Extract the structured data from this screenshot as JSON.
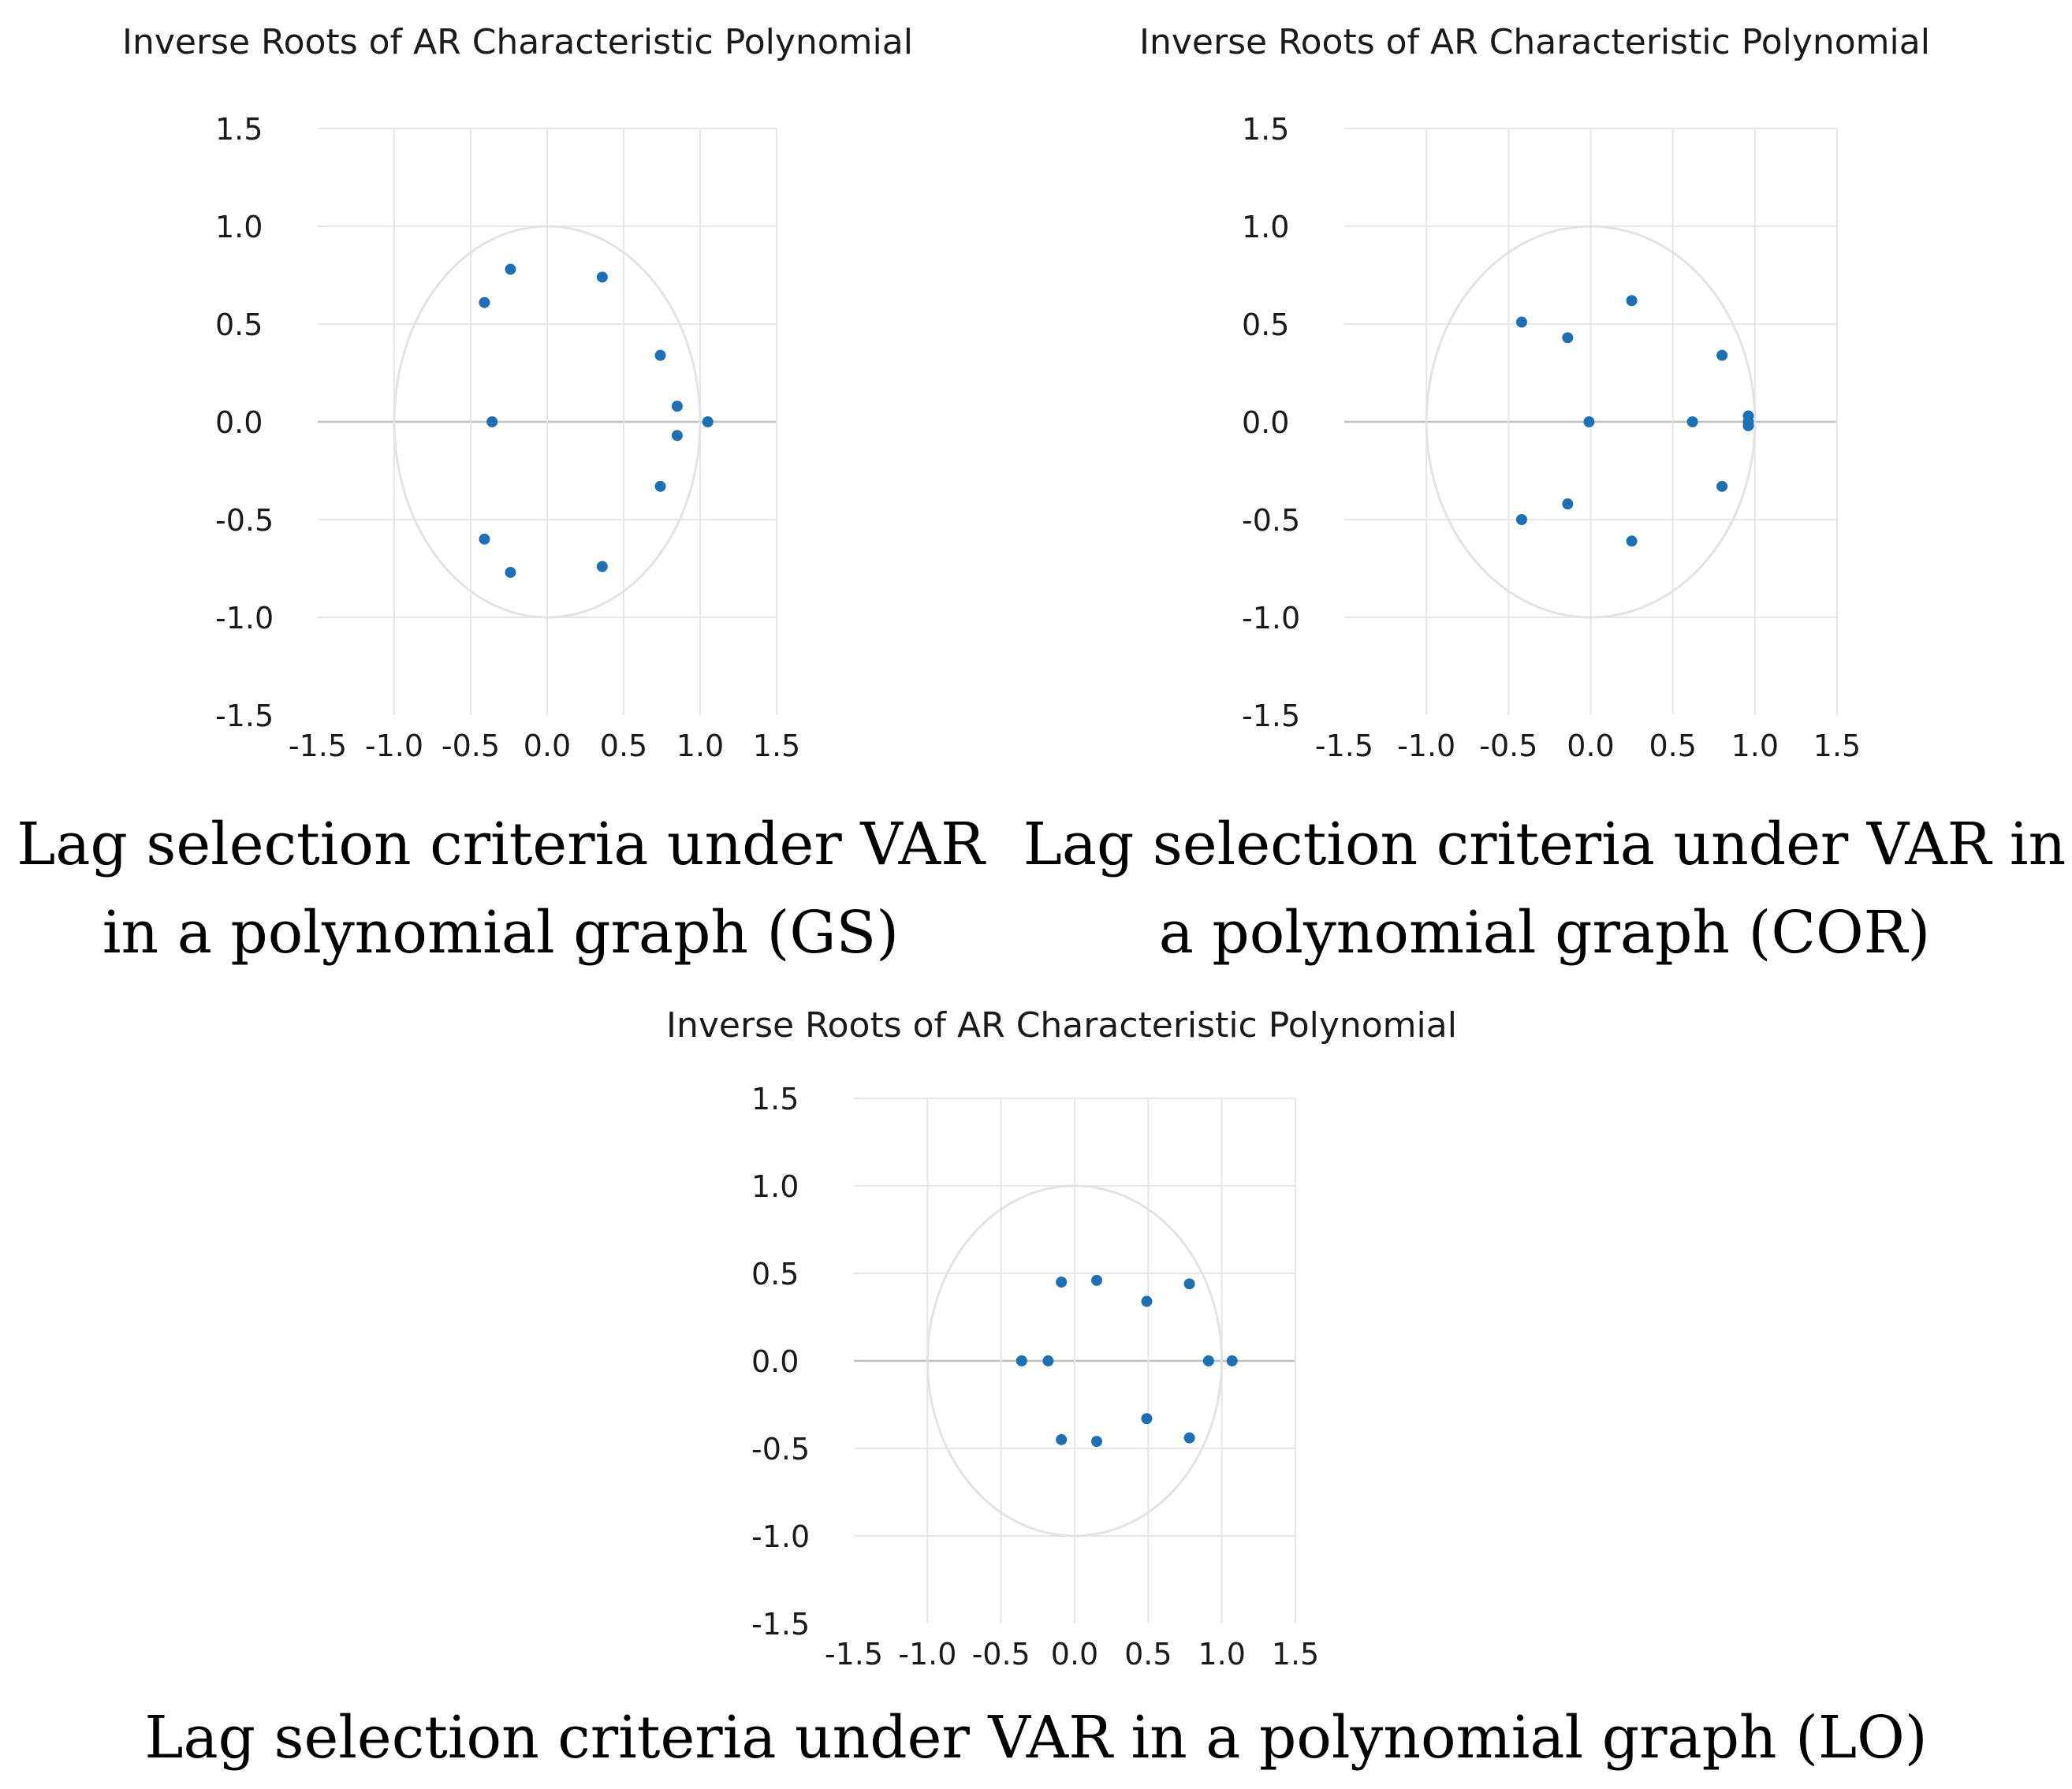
{
  "chart_data": [
    {
      "type": "scatter",
      "title": "Inverse Roots of AR Characteristic Polynomial",
      "caption_lines": [
        "Lag selection criteria under VAR",
        "in a polynomial graph (GS)"
      ],
      "xlim": [
        -1.5,
        1.5
      ],
      "ylim": [
        -1.5,
        1.5
      ],
      "xticks": [
        "-1.5",
        "-1.0",
        "-0.5",
        "0.0",
        "0.5",
        "1.0",
        "1.5"
      ],
      "yticks": [
        "1.5",
        "1.0",
        "0.5",
        "0.0",
        "-0.5",
        "-1.0",
        "-1.5"
      ],
      "unit_circle": true,
      "points": [
        {
          "x": -0.24,
          "y": 0.78
        },
        {
          "x": 0.36,
          "y": 0.74
        },
        {
          "x": -0.41,
          "y": 0.61
        },
        {
          "x": 0.74,
          "y": 0.34
        },
        {
          "x": 0.85,
          "y": 0.08
        },
        {
          "x": -0.36,
          "y": 0.0
        },
        {
          "x": 1.05,
          "y": 0.0
        },
        {
          "x": 0.85,
          "y": -0.07
        },
        {
          "x": 0.74,
          "y": -0.33
        },
        {
          "x": -0.41,
          "y": -0.6
        },
        {
          "x": -0.24,
          "y": -0.77
        },
        {
          "x": 0.36,
          "y": -0.74
        }
      ]
    },
    {
      "type": "scatter",
      "title": "Inverse Roots of AR Characteristic Polynomial",
      "caption_lines": [
        "Lag selection criteria under VAR in",
        "a polynomial graph (COR)"
      ],
      "xlim": [
        -1.5,
        1.5
      ],
      "ylim": [
        -1.5,
        1.5
      ],
      "xticks": [
        "-1.5",
        "-1.0",
        "-0.5",
        "0.0",
        "0.5",
        "1.0",
        "1.5"
      ],
      "yticks": [
        "1.5",
        "1.0",
        "0.5",
        "0.0",
        "-0.5",
        "-1.0",
        "-1.5"
      ],
      "unit_circle": true,
      "points": [
        {
          "x": 0.25,
          "y": 0.62
        },
        {
          "x": -0.42,
          "y": 0.51
        },
        {
          "x": -0.14,
          "y": 0.43
        },
        {
          "x": 0.8,
          "y": 0.34
        },
        {
          "x": 0.96,
          "y": 0.03
        },
        {
          "x": -0.01,
          "y": 0.0
        },
        {
          "x": 0.62,
          "y": 0.0
        },
        {
          "x": 0.96,
          "y": 0.0
        },
        {
          "x": 0.96,
          "y": -0.02
        },
        {
          "x": 0.8,
          "y": -0.33
        },
        {
          "x": -0.14,
          "y": -0.42
        },
        {
          "x": -0.42,
          "y": -0.5
        },
        {
          "x": 0.25,
          "y": -0.61
        }
      ]
    },
    {
      "type": "scatter",
      "title": "Inverse Roots of AR Characteristic Polynomial",
      "caption_lines": [
        "Lag selection criteria under VAR in a polynomial graph (LO)"
      ],
      "xlim": [
        -1.5,
        1.5
      ],
      "ylim": [
        -1.5,
        1.5
      ],
      "xticks": [
        "-1.5",
        "-1.0",
        "-0.5",
        "0.0",
        "0.5",
        "1.0",
        "1.5"
      ],
      "yticks": [
        "1.5",
        "1.0",
        "0.5",
        "0.0",
        "-0.5",
        "-1.0",
        "-1.5"
      ],
      "unit_circle": true,
      "points": [
        {
          "x": -0.09,
          "y": 0.45
        },
        {
          "x": 0.15,
          "y": 0.46
        },
        {
          "x": 0.78,
          "y": 0.44
        },
        {
          "x": 0.49,
          "y": 0.34
        },
        {
          "x": -0.36,
          "y": 0.0
        },
        {
          "x": -0.18,
          "y": 0.0
        },
        {
          "x": 0.91,
          "y": 0.0
        },
        {
          "x": 1.07,
          "y": 0.0
        },
        {
          "x": 0.49,
          "y": -0.33
        },
        {
          "x": -0.09,
          "y": -0.45
        },
        {
          "x": 0.15,
          "y": -0.46
        },
        {
          "x": 0.78,
          "y": -0.44
        }
      ]
    }
  ]
}
